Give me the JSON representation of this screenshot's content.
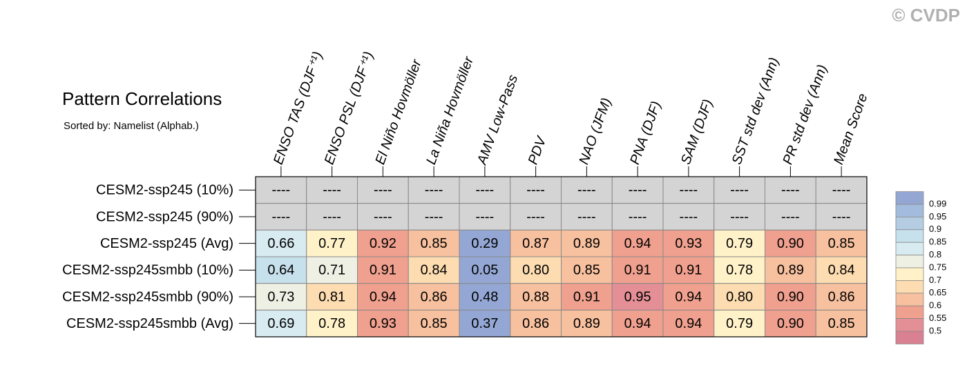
{
  "chart_data": {
    "type": "heatmap",
    "title": "Pattern Correlations",
    "subtitle": "Sorted by: Namelist (Alphab.)",
    "watermark": "© CVDP",
    "columns": [
      "ENSO TAS (DJF⁺¹)",
      "ENSO PSL (DJF⁺¹)",
      "El Niño Hovmöller",
      "La Niña Hovmöller",
      "AMV Low-Pass",
      "PDV",
      "NAO (JFM)",
      "PNA (DJF)",
      "SAM (DJF)",
      "SST std dev (Ann)",
      "PR std dev (Ann)",
      "Mean Score"
    ],
    "rows": [
      {
        "name": "CESM2-ssp245 (10%)",
        "values": [
          null,
          null,
          null,
          null,
          null,
          null,
          null,
          null,
          null,
          null,
          null,
          null
        ],
        "value_labels": [
          "----",
          "----",
          "----",
          "----",
          "----",
          "----",
          "----",
          "----",
          "----",
          "----",
          "----",
          "----"
        ]
      },
      {
        "name": "CESM2-ssp245 (90%)",
        "values": [
          null,
          null,
          null,
          null,
          null,
          null,
          null,
          null,
          null,
          null,
          null,
          null
        ],
        "value_labels": [
          "----",
          "----",
          "----",
          "----",
          "----",
          "----",
          "----",
          "----",
          "----",
          "----",
          "----",
          "----"
        ]
      },
      {
        "name": "CESM2-ssp245 (Avg)",
        "values": [
          0.66,
          0.77,
          0.92,
          0.85,
          0.29,
          0.87,
          0.89,
          0.94,
          0.93,
          0.79,
          0.9,
          0.85
        ],
        "value_labels": [
          "0.66",
          "0.77",
          "0.92",
          "0.85",
          "0.29",
          "0.87",
          "0.89",
          "0.94",
          "0.93",
          "0.79",
          "0.90",
          "0.85"
        ]
      },
      {
        "name": "CESM2-ssp245smbb (10%)",
        "values": [
          0.64,
          0.71,
          0.91,
          0.84,
          0.05,
          0.8,
          0.85,
          0.91,
          0.91,
          0.78,
          0.89,
          0.84
        ],
        "value_labels": [
          "0.64",
          "0.71",
          "0.91",
          "0.84",
          "0.05",
          "0.80",
          "0.85",
          "0.91",
          "0.91",
          "0.78",
          "0.89",
          "0.84"
        ]
      },
      {
        "name": "CESM2-ssp245smbb (90%)",
        "values": [
          0.73,
          0.81,
          0.94,
          0.86,
          0.48,
          0.88,
          0.91,
          0.95,
          0.94,
          0.8,
          0.9,
          0.86
        ],
        "value_labels": [
          "0.73",
          "0.81",
          "0.94",
          "0.86",
          "0.48",
          "0.88",
          "0.91",
          "0.95",
          "0.94",
          "0.80",
          "0.90",
          "0.86"
        ]
      },
      {
        "name": "CESM2-ssp245smbb (Avg)",
        "values": [
          0.69,
          0.78,
          0.93,
          0.85,
          0.37,
          0.86,
          0.89,
          0.94,
          0.94,
          0.79,
          0.9,
          0.85
        ],
        "value_labels": [
          "0.69",
          "0.78",
          "0.93",
          "0.85",
          "0.37",
          "0.86",
          "0.89",
          "0.94",
          "0.94",
          "0.79",
          "0.90",
          "0.85"
        ]
      }
    ],
    "levels": [
      0.5,
      0.55,
      0.6,
      0.65,
      0.7,
      0.75,
      0.8,
      0.85,
      0.9,
      0.95,
      0.99
    ],
    "colors": [
      "#94a7d4",
      "#a3bbdc",
      "#b4cde3",
      "#c6e0ec",
      "#d7ebf1",
      "#eef0e4",
      "#fff1c8",
      "#fcdcb0",
      "#f7c09e",
      "#f0a08e",
      "#e48f96",
      "#d98092"
    ],
    "missing_color": "#d4d4d4"
  }
}
